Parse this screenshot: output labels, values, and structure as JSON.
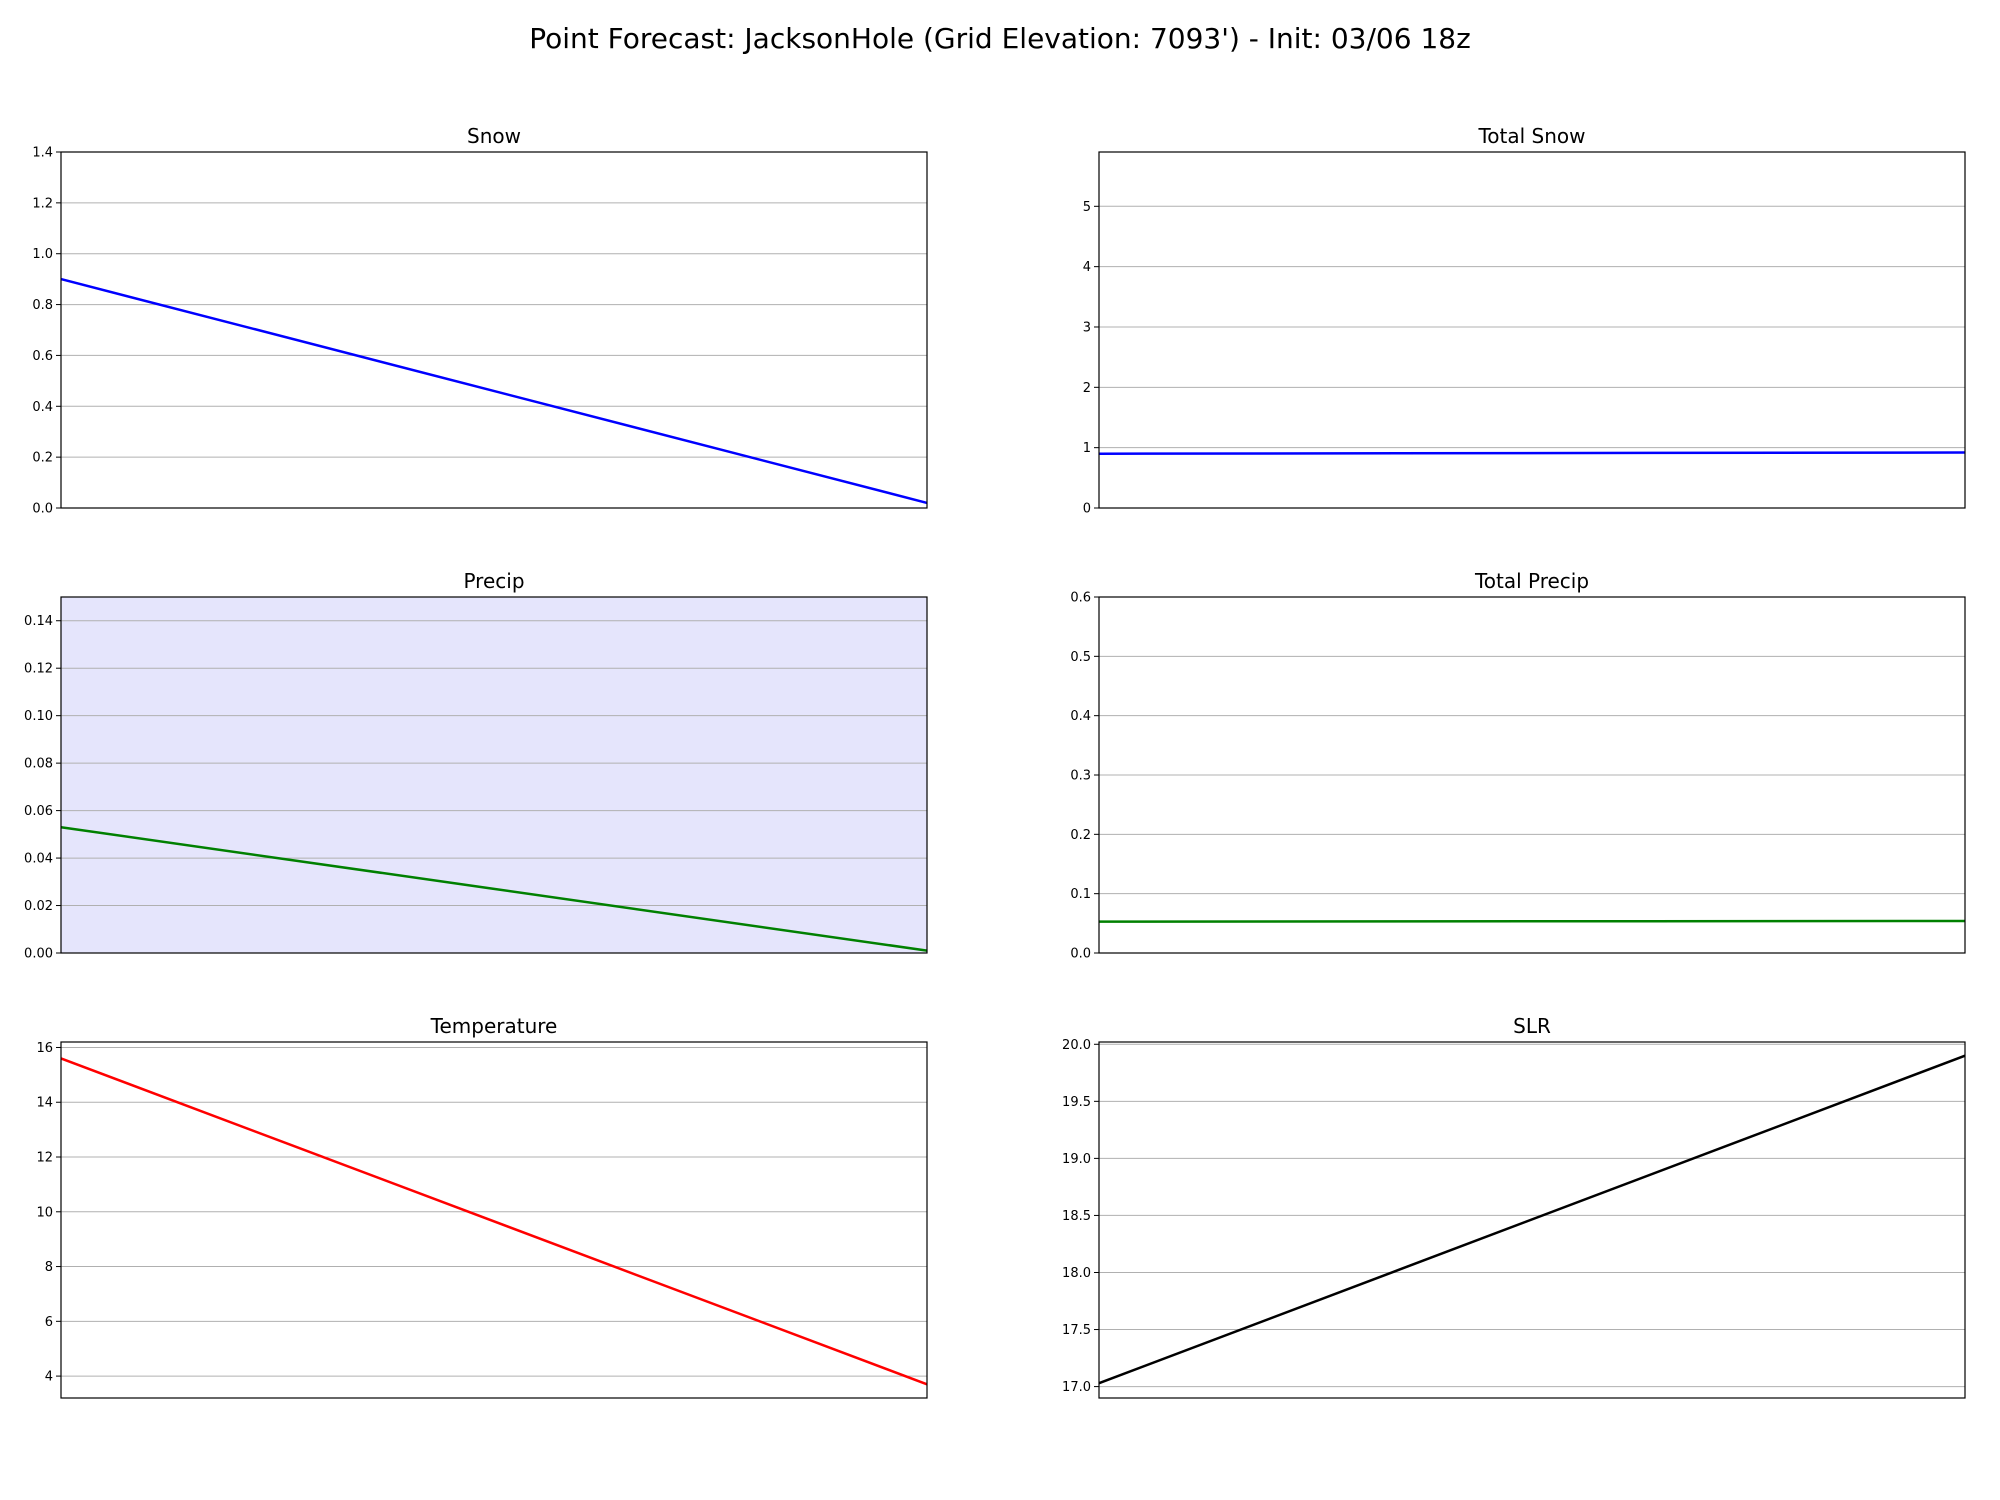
{
  "figure": {
    "title": "Point Forecast: JacksonHole (Grid Elevation: 7093') - Init: 03/06 18z"
  },
  "chart_data": [
    {
      "id": "snow",
      "type": "line",
      "title": "Snow",
      "x": [
        0,
        1
      ],
      "xticks": false,
      "ylim": [
        0,
        1.4
      ],
      "yticks": [
        0,
        0.2,
        0.4,
        0.6,
        0.8,
        1.0,
        1.2,
        1.4
      ],
      "tick_decimals": 1,
      "grid": "y",
      "background": null,
      "series": [
        {
          "values": [
            0.9,
            0.02
          ],
          "color": "#0000ff"
        }
      ]
    },
    {
      "id": "total-snow",
      "type": "line",
      "title": "Total Snow",
      "x": [
        0,
        1
      ],
      "xticks": false,
      "ylim": [
        0,
        5.9
      ],
      "yticks": [
        0,
        1,
        2,
        3,
        4,
        5
      ],
      "tick_decimals": 0,
      "grid": "y",
      "background": null,
      "series": [
        {
          "values": [
            0.9,
            0.92
          ],
          "color": "#0000ff"
        }
      ]
    },
    {
      "id": "precip",
      "type": "line",
      "title": "Precip",
      "x": [
        0,
        1
      ],
      "xticks": false,
      "ylim": [
        0,
        0.15
      ],
      "yticks": [
        0.0,
        0.02,
        0.04,
        0.06,
        0.08,
        0.1,
        0.12,
        0.14
      ],
      "tick_decimals": 2,
      "grid": "y",
      "background": "#e5e5fc",
      "series": [
        {
          "values": [
            0.053,
            0.001
          ],
          "color": "#008000"
        }
      ]
    },
    {
      "id": "total-precip",
      "type": "line",
      "title": "Total Precip",
      "x": [
        0,
        1
      ],
      "xticks": false,
      "ylim": [
        0,
        0.6
      ],
      "yticks": [
        0.0,
        0.1,
        0.2,
        0.3,
        0.4,
        0.5,
        0.6
      ],
      "tick_decimals": 1,
      "grid": "y",
      "background": null,
      "series": [
        {
          "values": [
            0.053,
            0.054
          ],
          "color": "#008000"
        }
      ]
    },
    {
      "id": "temperature",
      "type": "line",
      "title": "Temperature",
      "x": [
        0,
        1
      ],
      "xticks": false,
      "ylim": [
        3.2,
        16.2
      ],
      "yticks": [
        4,
        6,
        8,
        10,
        12,
        14,
        16
      ],
      "tick_decimals": 0,
      "grid": "y",
      "background": null,
      "series": [
        {
          "values": [
            15.6,
            3.7
          ],
          "color": "#ff0000"
        }
      ]
    },
    {
      "id": "slr",
      "type": "line",
      "title": "SLR",
      "x": [
        0,
        1
      ],
      "xticks": false,
      "ylim": [
        16.9,
        20.02
      ],
      "yticks": [
        17.0,
        17.5,
        18.0,
        18.5,
        19.0,
        19.5,
        20.0
      ],
      "tick_decimals": 1,
      "grid": "y",
      "background": null,
      "series": [
        {
          "values": [
            17.03,
            19.9
          ],
          "color": "#000000"
        }
      ]
    }
  ]
}
